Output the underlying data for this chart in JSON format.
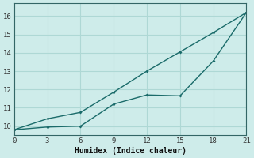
{
  "xlabel": "Humidex (Indice chaleur)",
  "background_color": "#ceecea",
  "grid_color": "#aed8d5",
  "line_color": "#1a6b6a",
  "xlim": [
    0,
    21
  ],
  "ylim": [
    9.5,
    16.7
  ],
  "xticks": [
    0,
    3,
    6,
    9,
    12,
    15,
    18,
    21
  ],
  "yticks": [
    10,
    11,
    12,
    13,
    14,
    15,
    16
  ],
  "line1_x": [
    0,
    3,
    6,
    9,
    12,
    15,
    18,
    21
  ],
  "line1_y": [
    9.8,
    9.95,
    10.0,
    11.2,
    11.7,
    11.65,
    13.55,
    16.2
  ],
  "line2_x": [
    0,
    3,
    6,
    9,
    12,
    15,
    18,
    21
  ],
  "line2_y": [
    9.8,
    10.4,
    10.75,
    11.85,
    13.0,
    14.05,
    15.1,
    16.2
  ]
}
